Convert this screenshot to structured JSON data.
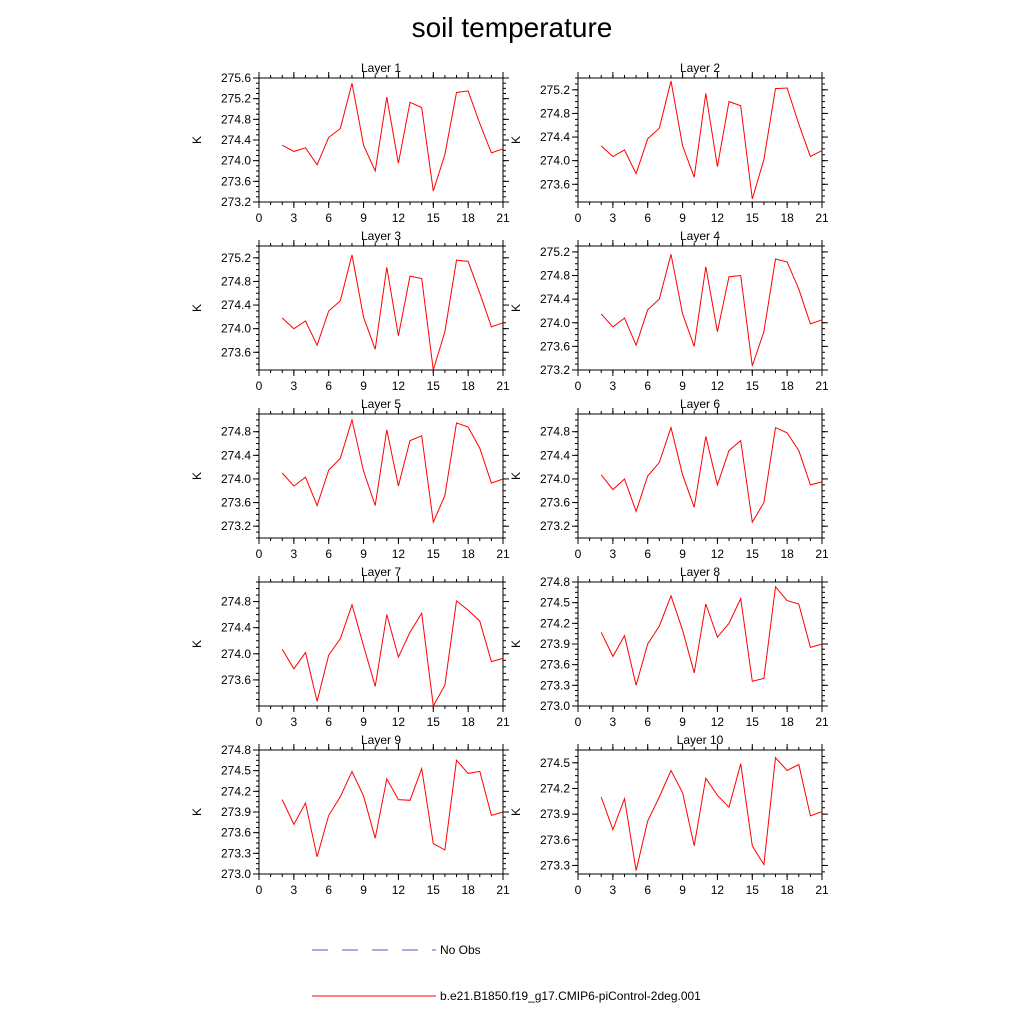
{
  "title": "soil temperature",
  "colors": {
    "model": "#ff0000",
    "obs": "#4a5bc8",
    "axis": "#000000"
  },
  "legend": {
    "items": [
      {
        "label": "No Obs",
        "style": "dashed",
        "color": "#4a5bc8"
      },
      {
        "label": "b.e21.B1850.f19_g17.CMIP6-piControl-2deg.001",
        "style": "solid",
        "color": "#ff0000"
      }
    ]
  },
  "chart_data": [
    {
      "type": "line",
      "title": "Layer 1",
      "ylabel": "K",
      "xlim": [
        0,
        21
      ],
      "ylim": [
        273.2,
        275.6
      ],
      "xticks": [
        0,
        3,
        6,
        9,
        12,
        15,
        18,
        21
      ],
      "yticks": [
        273.2,
        273.6,
        274.0,
        274.4,
        274.8,
        275.2,
        275.6
      ],
      "ytick_labels": [
        "273.2",
        "273.6",
        "274.0",
        "274.4",
        "274.8",
        "275.2",
        "275.6"
      ],
      "series": [
        {
          "x": [
            2,
            3,
            4,
            5,
            6,
            7,
            8,
            9,
            10,
            11,
            12,
            13,
            14,
            15,
            16,
            17,
            18,
            19,
            20,
            21
          ],
          "values": [
            274.3,
            274.18,
            274.25,
            273.92,
            274.45,
            274.62,
            275.5,
            274.3,
            273.8,
            275.23,
            273.95,
            275.13,
            275.03,
            273.41,
            274.12,
            275.32,
            275.35,
            274.72,
            274.15,
            274.23
          ]
        }
      ]
    },
    {
      "type": "line",
      "title": "Layer 2",
      "ylabel": "K",
      "xlim": [
        0,
        21
      ],
      "ylim": [
        273.3,
        275.4
      ],
      "xticks": [
        0,
        3,
        6,
        9,
        12,
        15,
        18,
        21
      ],
      "yticks": [
        273.6,
        274.0,
        274.4,
        274.8,
        275.2
      ],
      "ytick_labels": [
        "273.6",
        "274.0",
        "274.4",
        "274.8",
        "275.2"
      ],
      "series": [
        {
          "x": [
            2,
            3,
            4,
            5,
            6,
            7,
            8,
            9,
            10,
            11,
            12,
            13,
            14,
            15,
            16,
            17,
            18,
            19,
            20,
            21
          ],
          "values": [
            274.25,
            274.07,
            274.18,
            273.78,
            274.37,
            274.55,
            275.35,
            274.25,
            273.72,
            275.14,
            273.9,
            275.0,
            274.93,
            273.35,
            274.02,
            275.22,
            275.23,
            274.62,
            274.07,
            274.17
          ]
        }
      ]
    },
    {
      "type": "line",
      "title": "Layer 3",
      "ylabel": "K",
      "xlim": [
        0,
        21
      ],
      "ylim": [
        273.3,
        275.4
      ],
      "xticks": [
        0,
        3,
        6,
        9,
        12,
        15,
        18,
        21
      ],
      "yticks": [
        273.6,
        274.0,
        274.4,
        274.8,
        275.2
      ],
      "ytick_labels": [
        "273.6",
        "274.0",
        "274.4",
        "274.8",
        "275.2"
      ],
      "series": [
        {
          "x": [
            2,
            3,
            4,
            5,
            6,
            7,
            8,
            9,
            10,
            11,
            12,
            13,
            14,
            15,
            16,
            17,
            18,
            19,
            20,
            21
          ],
          "values": [
            274.18,
            274.0,
            274.13,
            273.72,
            274.3,
            274.47,
            275.25,
            274.19,
            273.65,
            275.04,
            273.88,
            274.89,
            274.85,
            273.3,
            273.95,
            275.16,
            275.14,
            274.6,
            274.03,
            274.1
          ]
        }
      ]
    },
    {
      "type": "line",
      "title": "Layer 4",
      "ylabel": "K",
      "xlim": [
        0,
        21
      ],
      "ylim": [
        273.2,
        275.3
      ],
      "xticks": [
        0,
        3,
        6,
        9,
        12,
        15,
        18,
        21
      ],
      "yticks": [
        273.2,
        273.6,
        274.0,
        274.4,
        274.8,
        275.2
      ],
      "ytick_labels": [
        "273.2",
        "273.6",
        "274.0",
        "274.4",
        "274.8",
        "275.2"
      ],
      "series": [
        {
          "x": [
            2,
            3,
            4,
            5,
            6,
            7,
            8,
            9,
            10,
            11,
            12,
            13,
            14,
            15,
            16,
            17,
            18,
            19,
            20,
            21
          ],
          "values": [
            274.15,
            273.93,
            274.08,
            273.62,
            274.22,
            274.4,
            275.16,
            274.15,
            273.6,
            274.95,
            273.85,
            274.78,
            274.8,
            273.27,
            273.85,
            275.08,
            275.03,
            274.57,
            273.98,
            274.05
          ]
        }
      ]
    },
    {
      "type": "line",
      "title": "Layer 5",
      "ylabel": "K",
      "xlim": [
        0,
        21
      ],
      "ylim": [
        273.0,
        275.1
      ],
      "xticks": [
        0,
        3,
        6,
        9,
        12,
        15,
        18,
        21
      ],
      "yticks": [
        273.2,
        273.6,
        274.0,
        274.4,
        274.8
      ],
      "ytick_labels": [
        "273.2",
        "273.6",
        "274.0",
        "274.4",
        "274.8"
      ],
      "series": [
        {
          "x": [
            2,
            3,
            4,
            5,
            6,
            7,
            8,
            9,
            10,
            11,
            12,
            13,
            14,
            15,
            16,
            17,
            18,
            19,
            20,
            21
          ],
          "values": [
            274.1,
            273.88,
            274.03,
            273.55,
            274.15,
            274.35,
            275.0,
            274.13,
            273.55,
            274.83,
            273.88,
            274.65,
            274.73,
            273.27,
            273.72,
            274.95,
            274.88,
            274.52,
            273.93,
            274.0
          ]
        }
      ]
    },
    {
      "type": "line",
      "title": "Layer 6",
      "ylabel": "K",
      "xlim": [
        0,
        21
      ],
      "ylim": [
        273.0,
        275.1
      ],
      "xticks": [
        0,
        3,
        6,
        9,
        12,
        15,
        18,
        21
      ],
      "yticks": [
        273.2,
        273.6,
        274.0,
        274.4,
        274.8
      ],
      "ytick_labels": [
        "273.2",
        "273.6",
        "274.0",
        "274.4",
        "274.8"
      ],
      "series": [
        {
          "x": [
            2,
            3,
            4,
            5,
            6,
            7,
            8,
            9,
            10,
            11,
            12,
            13,
            14,
            15,
            16,
            17,
            18,
            19,
            20,
            21
          ],
          "values": [
            274.07,
            273.82,
            274.0,
            273.45,
            274.05,
            274.28,
            274.87,
            274.07,
            273.52,
            274.72,
            273.9,
            274.48,
            274.65,
            273.27,
            273.6,
            274.87,
            274.78,
            274.48,
            273.9,
            273.95
          ]
        }
      ]
    },
    {
      "type": "line",
      "title": "Layer 7",
      "ylabel": "K",
      "xlim": [
        0,
        21
      ],
      "ylim": [
        273.2,
        275.1
      ],
      "xticks": [
        0,
        3,
        6,
        9,
        12,
        15,
        18,
        21
      ],
      "yticks": [
        273.6,
        274.0,
        274.4,
        274.8
      ],
      "ytick_labels": [
        "273.6",
        "274.0",
        "274.4",
        "274.8"
      ],
      "series": [
        {
          "x": [
            2,
            3,
            4,
            5,
            6,
            7,
            8,
            9,
            10,
            11,
            12,
            13,
            14,
            15,
            16,
            17,
            18,
            19,
            20,
            21
          ],
          "values": [
            274.07,
            273.77,
            274.02,
            273.27,
            273.98,
            274.23,
            274.75,
            274.12,
            273.5,
            274.6,
            273.95,
            274.33,
            274.62,
            273.2,
            273.52,
            274.81,
            274.67,
            274.5,
            273.88,
            273.93
          ]
        }
      ]
    },
    {
      "type": "line",
      "title": "Layer 8",
      "ylabel": "K",
      "xlim": [
        0,
        21
      ],
      "ylim": [
        273.0,
        274.8
      ],
      "xticks": [
        0,
        3,
        6,
        9,
        12,
        15,
        18,
        21
      ],
      "yticks": [
        273.0,
        273.3,
        273.6,
        273.9,
        274.2,
        274.5,
        274.8
      ],
      "ytick_labels": [
        "273.0",
        "273.3",
        "273.6",
        "273.9",
        "274.2",
        "274.5",
        "274.8"
      ],
      "series": [
        {
          "x": [
            2,
            3,
            4,
            5,
            6,
            7,
            8,
            9,
            10,
            11,
            12,
            13,
            14,
            15,
            16,
            17,
            18,
            19,
            20,
            21
          ],
          "values": [
            274.07,
            273.72,
            274.02,
            273.3,
            273.9,
            274.16,
            274.6,
            274.1,
            273.48,
            274.48,
            274.0,
            274.2,
            274.56,
            273.36,
            273.4,
            274.73,
            274.53,
            274.48,
            273.85,
            273.9
          ]
        }
      ]
    },
    {
      "type": "line",
      "title": "Layer 9",
      "ylabel": "K",
      "xlim": [
        0,
        21
      ],
      "ylim": [
        273.0,
        274.8
      ],
      "xticks": [
        0,
        3,
        6,
        9,
        12,
        15,
        18,
        21
      ],
      "yticks": [
        273.0,
        273.3,
        273.6,
        273.9,
        274.2,
        274.5,
        274.8
      ],
      "ytick_labels": [
        "273.0",
        "273.3",
        "273.6",
        "273.9",
        "274.2",
        "274.5",
        "274.8"
      ],
      "series": [
        {
          "x": [
            2,
            3,
            4,
            5,
            6,
            7,
            8,
            9,
            10,
            11,
            12,
            13,
            14,
            15,
            16,
            17,
            18,
            19,
            20,
            21
          ],
          "values": [
            274.08,
            273.72,
            274.03,
            273.25,
            273.85,
            274.12,
            274.49,
            274.13,
            273.52,
            274.38,
            274.08,
            274.07,
            274.53,
            273.44,
            273.35,
            274.65,
            274.46,
            274.49,
            273.85,
            273.9
          ]
        }
      ]
    },
    {
      "type": "line",
      "title": "Layer 10",
      "ylabel": "K",
      "xlim": [
        0,
        21
      ],
      "ylim": [
        273.2,
        274.65
      ],
      "xticks": [
        0,
        3,
        6,
        9,
        12,
        15,
        18,
        21
      ],
      "yticks": [
        273.3,
        273.6,
        273.9,
        274.2,
        274.5
      ],
      "ytick_labels": [
        "273.3",
        "273.6",
        "273.9",
        "274.2",
        "274.5"
      ],
      "series": [
        {
          "x": [
            2,
            3,
            4,
            5,
            6,
            7,
            8,
            9,
            10,
            11,
            12,
            13,
            14,
            15,
            16,
            17,
            18,
            19,
            20,
            21
          ],
          "values": [
            274.1,
            273.72,
            274.08,
            273.24,
            273.82,
            274.1,
            274.41,
            274.15,
            273.53,
            274.32,
            274.12,
            273.98,
            274.49,
            273.53,
            273.31,
            274.56,
            274.41,
            274.48,
            273.88,
            273.93
          ]
        }
      ]
    }
  ]
}
